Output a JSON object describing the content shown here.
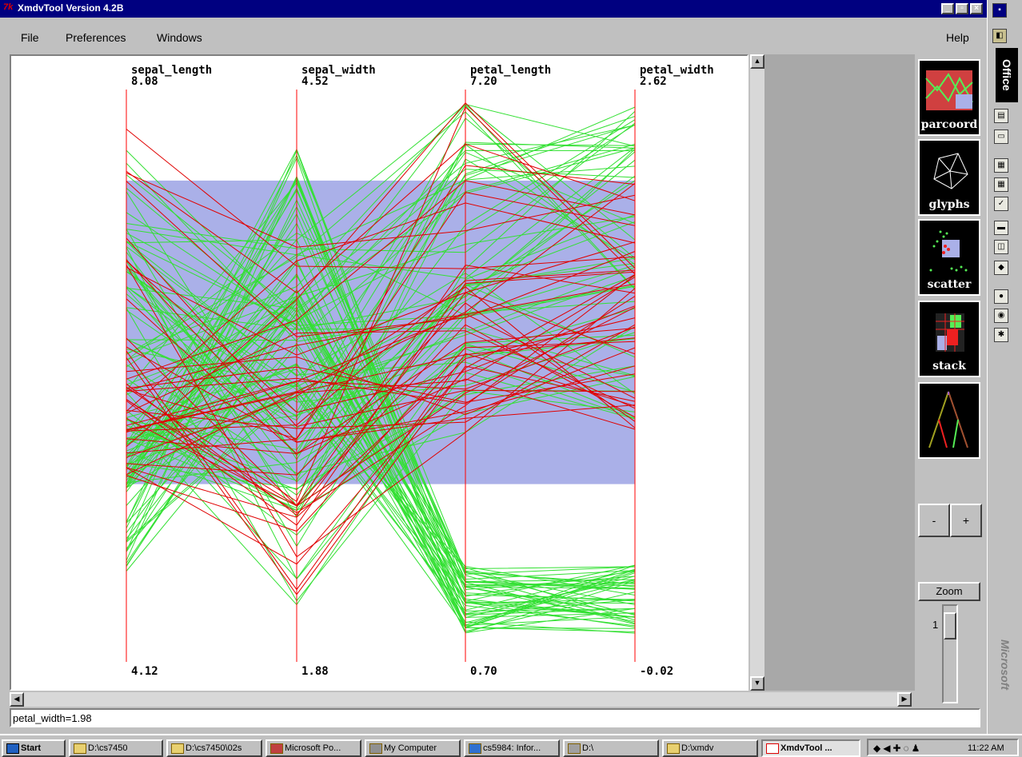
{
  "window": {
    "title": "XmdvTool Version 4.2B",
    "minimize": "_",
    "maximize": "▫",
    "close": "×"
  },
  "menu": {
    "file": "File",
    "preferences": "Preferences",
    "windows": "Windows",
    "help": "Help"
  },
  "chart_data": {
    "type": "parallel-coordinates",
    "axes": [
      {
        "name": "sepal_length",
        "max": "8.08",
        "min": "4.12"
      },
      {
        "name": "sepal_width",
        "max": "4.52",
        "min": "1.88"
      },
      {
        "name": "petal_length",
        "max": "7.20",
        "min": "0.70"
      },
      {
        "name": "petal_width",
        "max": "2.62",
        "min": "-0.02"
      }
    ],
    "brush": {
      "axis": "petal_width",
      "low": 0.8,
      "high": 2.2
    },
    "colors": {
      "axis": "#ff0000",
      "in_brush": "#e00000",
      "out_brush": "#33e033",
      "brush_fill": "#aab0e8"
    }
  },
  "status": {
    "text": "petal_width=1.98"
  },
  "side_panel": {
    "views": [
      "parcoord",
      "glyphs",
      "scatter",
      "stack"
    ],
    "minus": "-",
    "plus": "+",
    "zoom_label": "Zoom",
    "zoom_value": "1"
  },
  "office_bar": {
    "label": "Office",
    "brand": "Microsoft"
  },
  "taskbar": {
    "start": "Start",
    "tasks": [
      "D:\\cs7450",
      "D:\\cs7450\\02s",
      "Microsoft Po...",
      "My Computer",
      "cs5984: Infor...",
      "D:\\",
      "D:\\xmdv",
      "XmdvTool ..."
    ],
    "clock": "11:22 AM"
  }
}
